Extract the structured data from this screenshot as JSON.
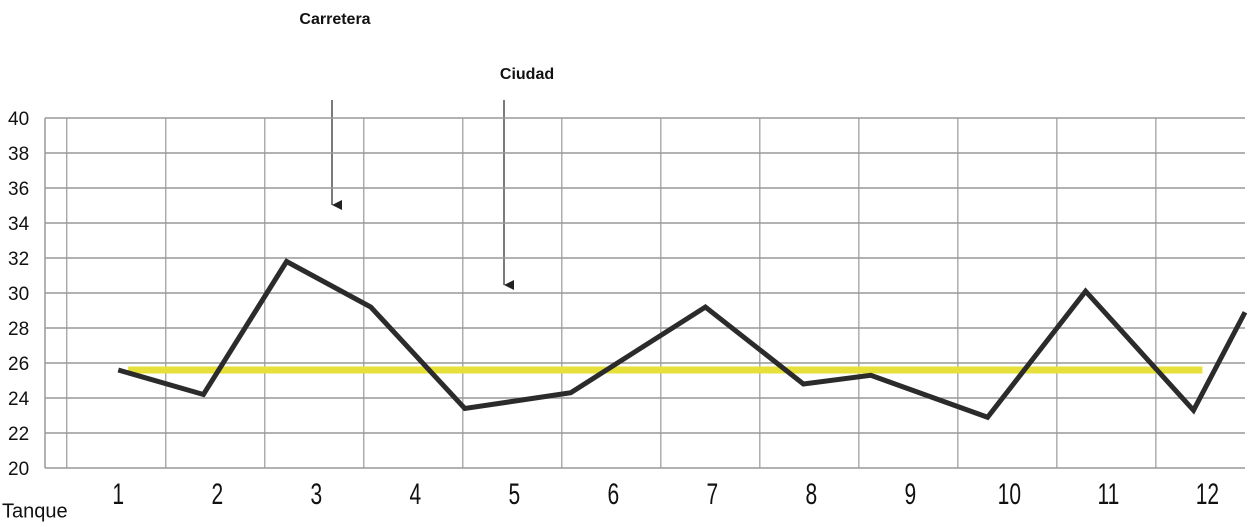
{
  "chart_data": {
    "type": "line",
    "annotations": [
      "Carretera",
      "Ciudad"
    ],
    "xlabel": "Tanque",
    "x": [
      1,
      1.86,
      2.7,
      3.55,
      4.5,
      5.57,
      6.93,
      7.92,
      8.6,
      9.78,
      10.77,
      11.86,
      12.38
    ],
    "series": [
      {
        "color": "#2b2b2b",
        "values": [
          25.6,
          24.2,
          31.8,
          29.2,
          23.4,
          24.3,
          29.2,
          24.8,
          25.3,
          22.9,
          30.1,
          23.3,
          28.9
        ]
      }
    ],
    "reference": {
      "color": "#e5e03a",
      "x": [
        1.1,
        11.95
      ],
      "values": [
        25.6,
        25.6
      ]
    },
    "xlim": [
      0.26,
      12.38
    ],
    "xticks": [
      1,
      2,
      3,
      4,
      5,
      6,
      7,
      8,
      9,
      10,
      11,
      12
    ],
    "ylim": [
      20,
      40
    ],
    "yticks": [
      20,
      22,
      24,
      26,
      28,
      30,
      32,
      34,
      36,
      38,
      40
    ],
    "grid": true
  }
}
